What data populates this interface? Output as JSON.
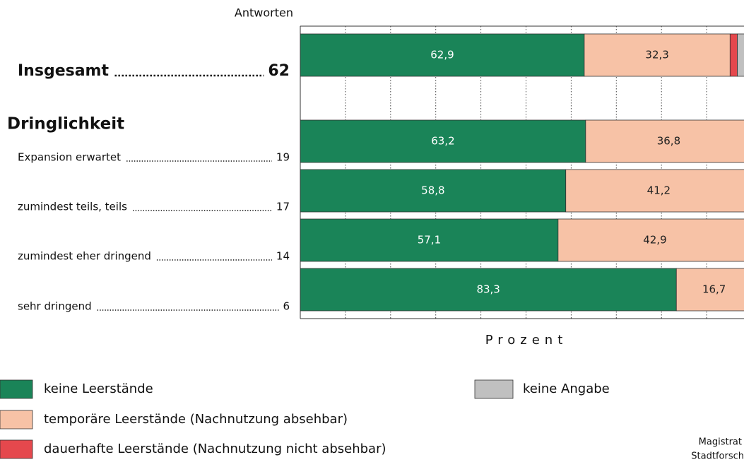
{
  "chart_data": {
    "type": "stacked-barh",
    "column_header": "Antworten",
    "group_header": "Dringlichkeit",
    "categories": [
      "Insgesamt",
      "Expansion erwartet",
      "zumindest teils, teils",
      "zumindest eher dringend",
      "sehr dringend"
    ],
    "counts": [
      62,
      19,
      17,
      14,
      6
    ],
    "series": [
      {
        "name": "keine Leerstände",
        "color": "#1a8458",
        "values": [
          62.9,
          63.2,
          58.8,
          57.1,
          83.3
        ],
        "value_labels": [
          "62,9",
          "63,2",
          "58,8",
          "57,1",
          "83,3"
        ]
      },
      {
        "name": "temporäre Leerstände (Nachnutzung absehbar)",
        "color": "#f7c2a6",
        "values": [
          32.3,
          36.8,
          41.2,
          42.9,
          16.7
        ],
        "value_labels": [
          "32,3",
          "36,8",
          "41,2",
          "42,9",
          "16,7"
        ]
      },
      {
        "name": "dauerhafte Leerstände (Nachnutzung nicht absehbar)",
        "color": "#e5484d",
        "values": [
          1.6,
          null,
          null,
          null,
          null
        ]
      },
      {
        "name": "keine Angabe",
        "color": "#c0c0c0",
        "values": [
          3.2,
          null,
          null,
          null,
          null
        ]
      }
    ],
    "xlabel": "Prozent",
    "xlim": [
      0,
      100
    ],
    "xticks": [
      10,
      20,
      30,
      40,
      50,
      60,
      70,
      80,
      90
    ],
    "grid": true,
    "source": [
      "Magistrat",
      "Stadtforsch"
    ]
  }
}
